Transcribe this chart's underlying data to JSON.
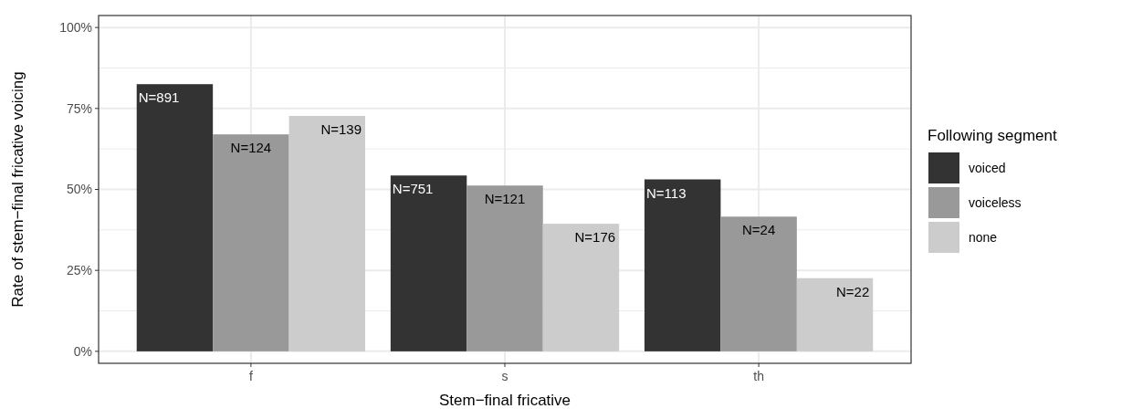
{
  "chart_data": {
    "type": "bar",
    "xlabel": "Stem−final fricative",
    "ylabel": "Rate of stem−final fricative voicing",
    "legend_title": "Following segment",
    "categories": [
      "f",
      "s",
      "th"
    ],
    "series": [
      {
        "name": "voiced",
        "color": "#333333",
        "values": [
          82.5,
          54.3,
          53.1
        ]
      },
      {
        "name": "voiceless",
        "color": "#999999",
        "values": [
          67.0,
          51.2,
          41.6
        ]
      },
      {
        "name": "none",
        "color": "#cccccc",
        "values": [
          72.7,
          39.4,
          22.6
        ]
      }
    ],
    "annotations": [
      "N=891",
      "N=751",
      "N=113",
      "N=124",
      "N=121",
      "N=24",
      "N=139",
      "N=176",
      "N=22"
    ],
    "ylim": [
      -3.7,
      103.7
    ],
    "yticks": [
      {
        "value": 0,
        "label": "0%"
      },
      {
        "value": 12.5,
        "label": null
      },
      {
        "value": 25,
        "label": "25%"
      },
      {
        "value": 37.5,
        "label": null
      },
      {
        "value": 50,
        "label": "50%"
      },
      {
        "value": 62.5,
        "label": null
      },
      {
        "value": 75,
        "label": "75%"
      },
      {
        "value": 87.5,
        "label": null
      },
      {
        "value": 100,
        "label": "100%"
      }
    ],
    "grid": true,
    "legend": "right"
  }
}
